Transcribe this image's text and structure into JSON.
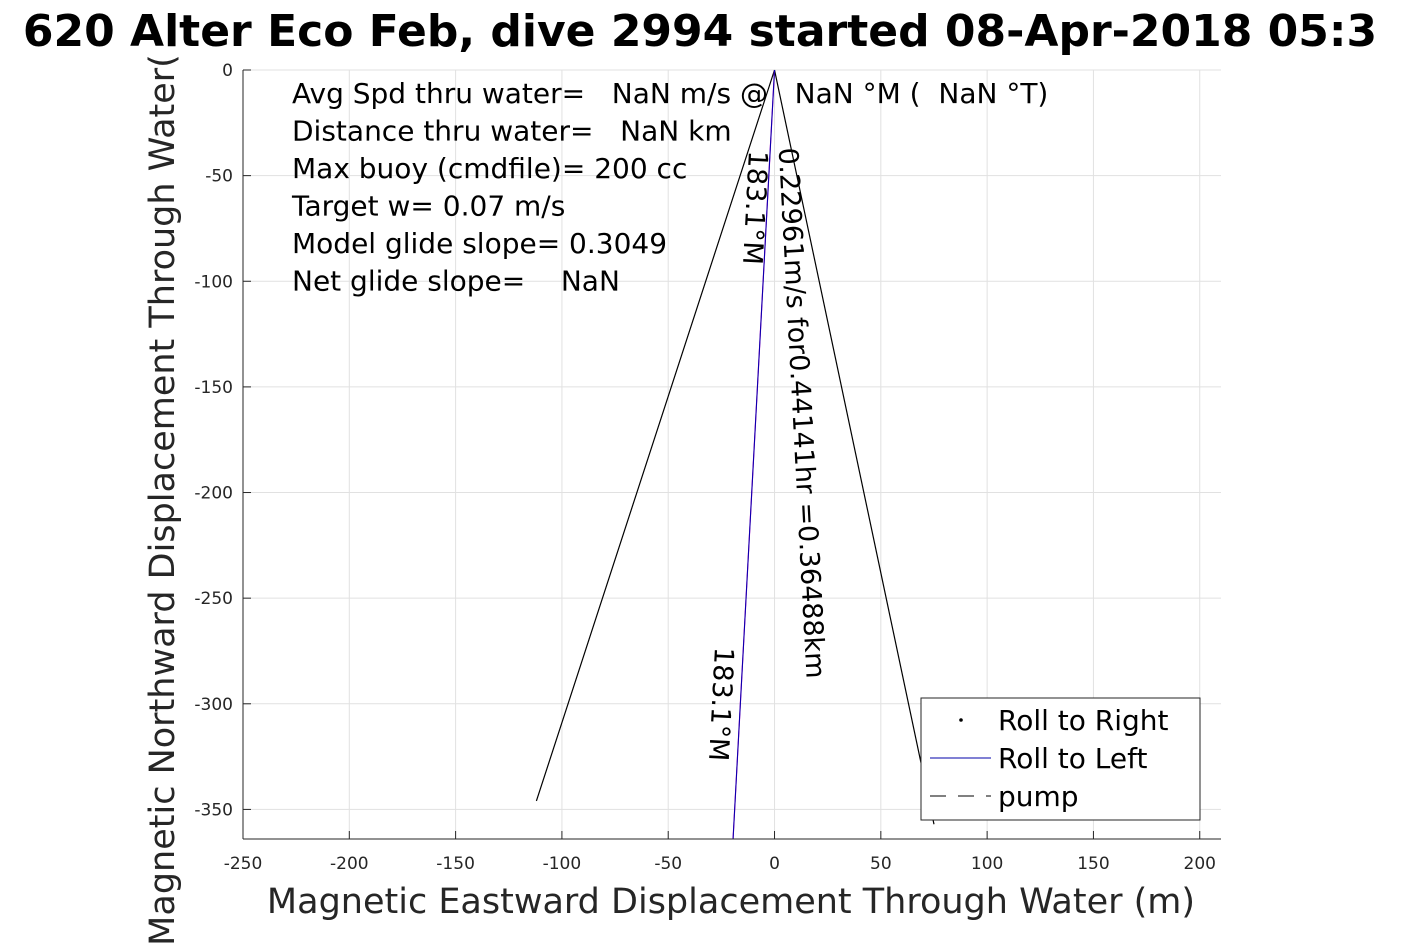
{
  "chart_data": {
    "type": "line",
    "title": "620 Alter Eco Feb, dive 2994 started 08-Apr-2018 05:3",
    "xlabel": "Magnetic Eastward Displacement Through Water (m)",
    "ylabel": "Magnetic Northward Displacement Through Water(",
    "xlim": [
      -250,
      210
    ],
    "ylim": [
      -364,
      0
    ],
    "xticks": [
      -250,
      -200,
      -150,
      -100,
      -50,
      0,
      50,
      100,
      150,
      200
    ],
    "yticks": [
      0,
      -50,
      -100,
      -150,
      -200,
      -250,
      -300,
      -350
    ],
    "grid": true,
    "series": [
      {
        "name": "Roll to Right",
        "style": "dots",
        "color": "#000000",
        "x": [],
        "y": []
      },
      {
        "name": "Roll to Left",
        "style": "solid",
        "color": "#0000aa",
        "x": [
          0,
          -19.5
        ],
        "y": [
          0,
          -364
        ]
      },
      {
        "name": "pump",
        "style": "dashed",
        "color": "#000000",
        "x": [],
        "y": []
      }
    ],
    "extra_lines": [
      {
        "color": "#000000",
        "x": [
          0,
          -112
        ],
        "y": [
          0,
          -346
        ]
      },
      {
        "color": "#000000",
        "x": [
          0,
          75
        ],
        "y": [
          0,
          -357
        ]
      },
      {
        "color": "#cc00cc",
        "x": [
          0,
          -19.5
        ],
        "y": [
          0,
          -364
        ]
      }
    ],
    "info_lines": [
      "Avg Spd thru water=   NaN m/s @   NaN °M (  NaN °T)",
      "Distance thru water=   NaN km",
      "Max buoy (cmdfile)= 200 cc",
      "Target w= 0.07 m/s",
      "Model glide slope= 0.3049",
      "Net glide slope=    NaN"
    ],
    "annotations": [
      {
        "text": "0.22961m/s for0.44141hr =0.36488km",
        "x": 2,
        "y": -37,
        "rotation": 87
      },
      {
        "text": "183.1°M",
        "x": -12,
        "y": -38,
        "rotation": 93
      },
      {
        "text": "183.1°M",
        "x": -28,
        "y": -273,
        "rotation": 93
      }
    ],
    "legend": {
      "position": "bottom-right",
      "entries": [
        "Roll to Right",
        "Roll to Left",
        "pump"
      ]
    }
  }
}
